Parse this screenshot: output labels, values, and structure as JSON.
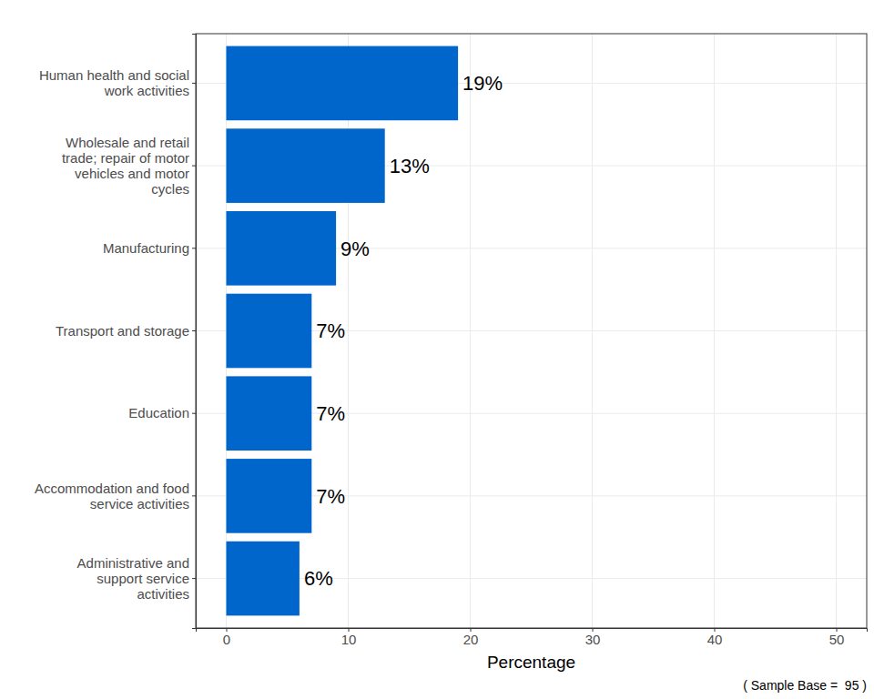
{
  "chart_data": {
    "type": "bar",
    "orientation": "horizontal",
    "categories": [
      "Human health and social work activities",
      "Wholesale and retail trade; repair of motor vehicles and motor cycles",
      "Manufacturing",
      "Transport and storage",
      "Education",
      "Accommodation and food service activities",
      "Administrative and support service activities"
    ],
    "values": [
      19,
      13,
      9,
      7,
      7,
      7,
      6
    ],
    "value_labels": [
      "19%",
      "13%",
      "9%",
      "7%",
      "7%",
      "7%",
      "6%"
    ],
    "data_labels": true,
    "color": "#0066cc",
    "xlabel": "Percentage",
    "annotation": "( Sample Base =  95 )",
    "xlim": [
      -2.5,
      52.5
    ],
    "xticks": [
      0,
      10,
      20,
      30,
      40,
      50
    ],
    "grid": true
  }
}
